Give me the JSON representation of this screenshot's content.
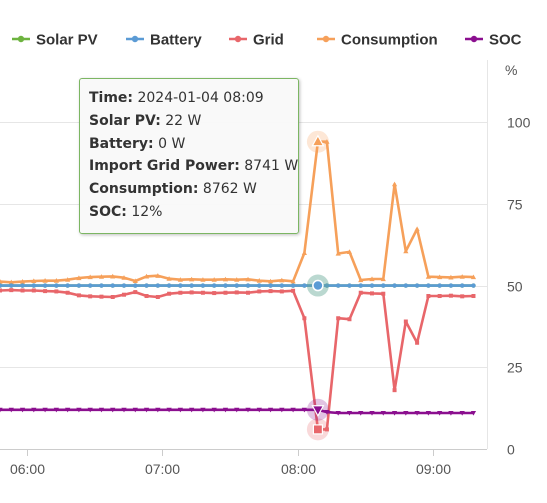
{
  "chart_data": {
    "type": "line",
    "legend": {
      "placement": "top",
      "items": [
        {
          "label": "Solar PV",
          "color": "#6db33f"
        },
        {
          "label": "Battery",
          "color": "#5b9bd5"
        },
        {
          "label": "Grid",
          "color": "#e8666a"
        },
        {
          "label": "Consumption",
          "color": "#f6a05a"
        },
        {
          "label": "SOC",
          "color": "#8b0f8f"
        }
      ]
    },
    "y_axis": {
      "unit_label": "%",
      "ticks": [
        "0",
        "25",
        "50",
        "75",
        "100"
      ],
      "ylim": [
        0,
        119
      ],
      "position": "right"
    },
    "x_axis": {
      "ticks": [
        "06:00",
        "07:00",
        "08:00",
        "09:00"
      ],
      "xlim": [
        "05:48",
        "09:24"
      ]
    },
    "grid": true,
    "x": [
      "05:48",
      "05:53",
      "05:58",
      "06:03",
      "06:08",
      "06:13",
      "06:18",
      "06:23",
      "06:28",
      "06:33",
      "06:38",
      "06:43",
      "06:48",
      "06:53",
      "06:58",
      "07:03",
      "07:08",
      "07:13",
      "07:18",
      "07:23",
      "07:28",
      "07:33",
      "07:38",
      "07:43",
      "07:48",
      "07:53",
      "07:58",
      "08:03",
      "08:09",
      "08:13",
      "08:18",
      "08:23",
      "08:28",
      "08:33",
      "08:38",
      "08:43",
      "08:48",
      "08:53",
      "08:58",
      "09:03",
      "09:08",
      "09:13",
      "09:18"
    ],
    "series": [
      {
        "name": "Solar PV",
        "color": "#6db33f",
        "marker": "circle",
        "values": [
          50,
          50,
          50,
          50,
          50,
          50,
          50,
          50,
          50,
          50,
          50,
          50,
          50,
          50,
          50,
          50,
          50,
          50,
          50,
          50,
          50,
          50,
          50,
          50,
          50,
          50,
          50,
          50,
          50,
          50,
          50,
          50,
          50,
          50,
          50,
          50,
          50,
          50,
          50,
          50,
          50,
          50,
          50
        ]
      },
      {
        "name": "Battery",
        "color": "#5b9bd5",
        "marker": "circle",
        "values": [
          50,
          50,
          50,
          50,
          50,
          50,
          50,
          50,
          50,
          50,
          50,
          50,
          50,
          50,
          50,
          50,
          50,
          50,
          50,
          50,
          50,
          50,
          50,
          50,
          50,
          50,
          50,
          50,
          50,
          50,
          50,
          50,
          50,
          50,
          50,
          50,
          50,
          50,
          50,
          50,
          50,
          50,
          50
        ]
      },
      {
        "name": "Grid",
        "color": "#e8666a",
        "marker": "square",
        "values": [
          48.5,
          48.6,
          48.5,
          48.5,
          48.3,
          48.2,
          47.8,
          47.0,
          46.7,
          46.6,
          46.5,
          47.2,
          48.0,
          46.8,
          46.5,
          47.5,
          47.8,
          47.9,
          47.8,
          47.7,
          47.8,
          47.9,
          47.8,
          48.2,
          48.3,
          48.2,
          48.4,
          40.0,
          6.0,
          6.0,
          40.0,
          39.7,
          47.8,
          47.6,
          47.5,
          18.0,
          39.0,
          32.5,
          46.8,
          46.8,
          46.9,
          46.7,
          46.8
        ]
      },
      {
        "name": "Consumption",
        "color": "#f6a05a",
        "marker": "triangle",
        "values": [
          51.2,
          51.0,
          51.2,
          51.4,
          51.5,
          51.5,
          51.8,
          52.3,
          52.6,
          52.7,
          52.8,
          52.4,
          51.4,
          52.8,
          53.0,
          52.1,
          51.8,
          51.9,
          51.8,
          51.8,
          51.9,
          51.8,
          51.9,
          51.5,
          51.3,
          51.6,
          51.3,
          60.0,
          94.0,
          94.0,
          59.8,
          60.3,
          51.7,
          52.0,
          52.0,
          81.0,
          60.5,
          67.3,
          52.7,
          52.6,
          52.5,
          52.7,
          52.6
        ]
      },
      {
        "name": "SOC",
        "color": "#8b0f8f",
        "marker": "triangle-down",
        "values": [
          12,
          12,
          12,
          12,
          12,
          12,
          12,
          12,
          12,
          12,
          12,
          12,
          12,
          12,
          12,
          12,
          12,
          12,
          12,
          12,
          12,
          12,
          12,
          12,
          12,
          12,
          12,
          12,
          12,
          11.3,
          11.0,
          11.0,
          11.0,
          11.0,
          11.0,
          11.0,
          11.0,
          11.0,
          11.0,
          11.0,
          11.0,
          11.0,
          11.0
        ]
      }
    ],
    "tooltip": {
      "hover_x": "08:09",
      "rows": [
        {
          "label": "Time:",
          "value": "2024-01-04 08:09"
        },
        {
          "label": "Solar PV:",
          "value": "22 W"
        },
        {
          "label": "Battery:",
          "value": "0 W"
        },
        {
          "label": "Import Grid Power:",
          "value": "8741 W"
        },
        {
          "label": "Consumption:",
          "value": "8762 W"
        },
        {
          "label": "SOC:",
          "value": "12%"
        }
      ]
    }
  }
}
